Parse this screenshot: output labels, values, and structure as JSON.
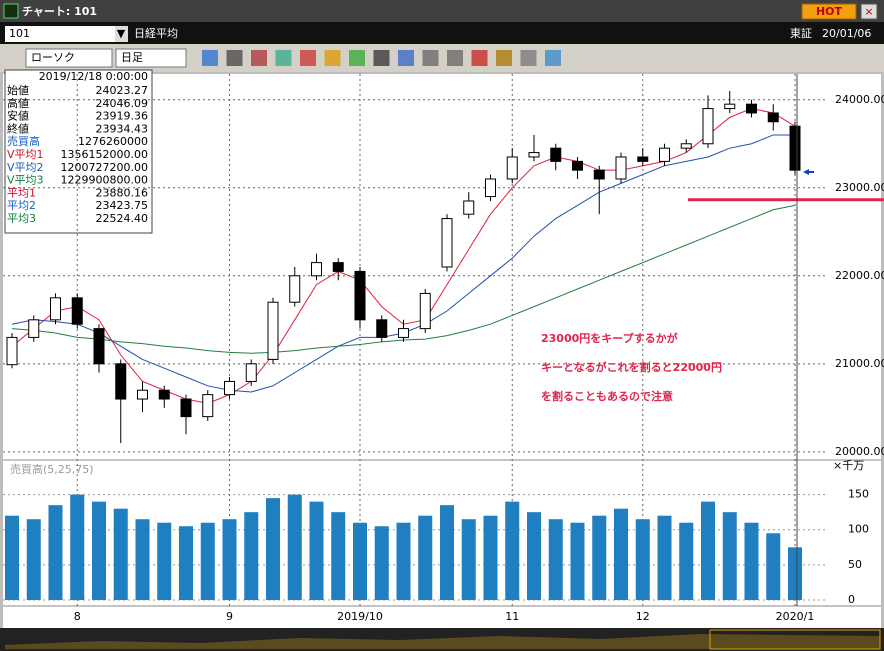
{
  "window": {
    "title": "チャート: 101",
    "hot": "HOT",
    "code": "101",
    "name": "日経平均",
    "exchange": "東証",
    "date": "20/01/06",
    "chart_style": "ローソク",
    "period": "日足"
  },
  "info_panel": {
    "datetime": "2019/12/18 0:00:00",
    "rows": [
      {
        "label": "始値",
        "value": "24023.27",
        "color": "#000000"
      },
      {
        "label": "高値",
        "value": "24046.09",
        "color": "#000000"
      },
      {
        "label": "安値",
        "value": "23919.36",
        "color": "#000000"
      },
      {
        "label": "終値",
        "value": "23934.43",
        "color": "#000000"
      },
      {
        "label": "売買高",
        "value": "1276260000",
        "color": "#1060c0"
      },
      {
        "label": "V平均1",
        "value": "1356152000.00",
        "color": "#d01030"
      },
      {
        "label": "V平均2",
        "value": "1200727200.00",
        "color": "#1060c0"
      },
      {
        "label": "V平均3",
        "value": "1229900800.00",
        "color": "#108040"
      },
      {
        "label": "平均1",
        "value": "23880.16",
        "color": "#d01030"
      },
      {
        "label": "平均2",
        "value": "23423.75",
        "color": "#1060c0"
      },
      {
        "label": "平均3",
        "value": "22524.40",
        "color": "#108040"
      }
    ]
  },
  "chart_data": {
    "type": "candlestick",
    "categories": [
      null,
      null,
      null,
      "8",
      null,
      null,
      null,
      null,
      null,
      null,
      "9",
      null,
      null,
      null,
      null,
      null,
      "2019/10",
      null,
      null,
      null,
      null,
      null,
      null,
      "11",
      null,
      null,
      null,
      null,
      null,
      "12",
      null,
      null,
      null,
      null,
      null,
      null,
      "2020/1"
    ],
    "candles": {
      "open": [
        20990,
        21300,
        21500,
        21750,
        21400,
        21000,
        20600,
        20700,
        20600,
        20400,
        20650,
        20800,
        21050,
        21700,
        22000,
        22150,
        22050,
        21500,
        21300,
        21400,
        22100,
        22700,
        22900,
        23100,
        23350,
        23450,
        23300,
        23200,
        23100,
        23350,
        23300,
        23450,
        23500,
        23900,
        23950,
        23850,
        23700
      ],
      "high": [
        21350,
        21550,
        21800,
        21800,
        21450,
        21050,
        20800,
        20750,
        20650,
        20700,
        20850,
        21050,
        21750,
        22100,
        22250,
        22200,
        22100,
        21550,
        21500,
        21850,
        22700,
        22950,
        23150,
        23450,
        23600,
        23500,
        23350,
        23250,
        23400,
        23450,
        23500,
        23550,
        24050,
        24100,
        24000,
        23950,
        23750
      ],
      "low": [
        20950,
        21250,
        21450,
        21400,
        20900,
        20100,
        20450,
        20500,
        20200,
        20350,
        20600,
        20750,
        21000,
        21650,
        21950,
        21950,
        21400,
        21250,
        21250,
        21350,
        22050,
        22650,
        22850,
        23050,
        23300,
        23200,
        23100,
        22700,
        23050,
        23250,
        23250,
        23400,
        23450,
        23850,
        23800,
        23650,
        23150
      ],
      "close": [
        21300,
        21500,
        21750,
        21450,
        21000,
        20600,
        20700,
        20600,
        20400,
        20650,
        20800,
        21000,
        21700,
        22000,
        22150,
        22050,
        21500,
        21300,
        21400,
        21800,
        22650,
        22850,
        23100,
        23350,
        23400,
        23300,
        23200,
        23100,
        23350,
        23300,
        23450,
        23500,
        23900,
        23950,
        23850,
        23750,
        23200
      ]
    },
    "series": [
      {
        "color": "#e0203c",
        "values": [
          21200,
          21400,
          21600,
          21650,
          21500,
          21100,
          20800,
          20700,
          20600,
          20550,
          20650,
          20800,
          21100,
          21500,
          21900,
          22050,
          21950,
          21650,
          21450,
          21500,
          21900,
          22300,
          22700,
          23000,
          23250,
          23350,
          23300,
          23200,
          23200,
          23250,
          23300,
          23400,
          23600,
          23800,
          23900,
          23850,
          23700
        ]
      },
      {
        "color": "#2050b0",
        "values": [
          21450,
          21500,
          21480,
          21450,
          21350,
          21200,
          21050,
          20950,
          20850,
          20750,
          20700,
          20680,
          20750,
          20900,
          21050,
          21200,
          21300,
          21300,
          21350,
          21450,
          21600,
          21800,
          22000,
          22200,
          22450,
          22650,
          22800,
          22950,
          23050,
          23150,
          23250,
          23300,
          23350,
          23450,
          23500,
          23600,
          23600
        ]
      },
      {
        "color": "#208040",
        "values": [
          21400,
          21380,
          21350,
          21300,
          21280,
          21250,
          21230,
          21200,
          21180,
          21150,
          21130,
          21120,
          21130,
          21150,
          21180,
          21200,
          21220,
          21250,
          21270,
          21280,
          21320,
          21380,
          21450,
          21550,
          21650,
          21750,
          21850,
          21950,
          22050,
          22150,
          22250,
          22350,
          22450,
          22550,
          22650,
          22750,
          22800
        ]
      }
    ],
    "ylim": [
      19930,
      24270
    ],
    "yticks": [
      {
        "value": 20000,
        "label": "20000.00"
      },
      {
        "value": 21000,
        "label": "21000.00"
      },
      {
        "value": 22000,
        "label": "22000.00"
      },
      {
        "value": 23000,
        "label": "23000.00"
      },
      {
        "value": 24000,
        "label": "24000.00"
      }
    ],
    "reference_line": {
      "value": 23000,
      "color": "#e0244c"
    },
    "annotations": [
      "23000円をキープするかが",
      "キーとなるがこれを割ると22000円",
      "を割ることもあるので注意"
    ],
    "volume": {
      "label": "売買高(5,25,75)",
      "unit": "×千万",
      "color": "#1f7fc1",
      "values": [
        120,
        115,
        135,
        150,
        140,
        130,
        115,
        110,
        105,
        110,
        115,
        125,
        145,
        150,
        140,
        125,
        110,
        105,
        110,
        120,
        135,
        115,
        120,
        140,
        125,
        115,
        110,
        120,
        130,
        115,
        120,
        110,
        140,
        125,
        110,
        95,
        75
      ],
      "ylim": [
        0,
        195
      ],
      "yticks": [
        0,
        50,
        100,
        150
      ]
    }
  }
}
